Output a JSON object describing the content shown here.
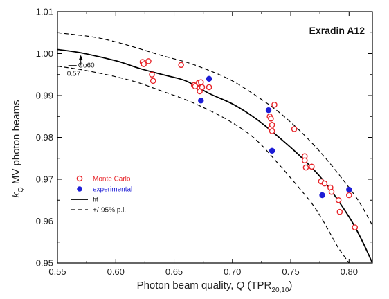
{
  "chart_data": {
    "type": "scatter",
    "title": "Exradin A12",
    "xlabel_pre": "Photon beam quality, ",
    "xlabel_q": "Q",
    "xlabel_mid": " (TPR",
    "xlabel_sub": "20,10",
    "xlabel_post": ")",
    "ylabel_k": "k",
    "ylabel_sub": "Q",
    "ylabel_rest": " MV photon beams",
    "xlim": [
      0.55,
      0.82
    ],
    "ylim": [
      0.95,
      1.01
    ],
    "x_ticks": [
      0.55,
      0.6,
      0.65,
      0.7,
      0.75,
      0.8
    ],
    "x_tick_labels": [
      "0.55",
      "0.60",
      "0.65",
      "0.70",
      "0.75",
      "0.80"
    ],
    "y_ticks": [
      0.95,
      0.96,
      0.97,
      0.98,
      0.99,
      1.0,
      1.01
    ],
    "y_tick_labels": [
      "0.95",
      "0.96",
      "0.97",
      "0.98",
      "0.99",
      "1.00",
      "1.01"
    ],
    "annotation": {
      "line1": "Co60",
      "line2": "0.57",
      "x": 0.57,
      "y": 1.0
    },
    "legend": {
      "placement": "lower-left",
      "entries": [
        {
          "label": "Monte Carlo",
          "kind": "open-circle",
          "color": "#e8262b"
        },
        {
          "label": "experimental",
          "kind": "filled-circle",
          "color": "#1d1dd6"
        },
        {
          "label": "fit",
          "kind": "solid-line",
          "color": "#000000"
        },
        {
          "label": "+/-95% p.l.",
          "kind": "dashed-line",
          "color": "#000000"
        }
      ]
    },
    "series": [
      {
        "name": "Monte Carlo",
        "color": "#e8262b",
        "marker": "open-circle",
        "points": [
          [
            0.623,
            0.998
          ],
          [
            0.624,
            0.9975
          ],
          [
            0.628,
            0.9982
          ],
          [
            0.631,
            0.995
          ],
          [
            0.632,
            0.9935
          ],
          [
            0.656,
            0.9973
          ],
          [
            0.667,
            0.9925
          ],
          [
            0.668,
            0.9922
          ],
          [
            0.671,
            0.993
          ],
          [
            0.672,
            0.9918
          ],
          [
            0.672,
            0.991
          ],
          [
            0.673,
            0.9932
          ],
          [
            0.674,
            0.992
          ],
          [
            0.68,
            0.992
          ],
          [
            0.732,
            0.985
          ],
          [
            0.733,
            0.9845
          ],
          [
            0.733,
            0.9822
          ],
          [
            0.734,
            0.9815
          ],
          [
            0.734,
            0.983
          ],
          [
            0.736,
            0.9878
          ],
          [
            0.753,
            0.982
          ],
          [
            0.762,
            0.9755
          ],
          [
            0.762,
            0.9745
          ],
          [
            0.763,
            0.9728
          ],
          [
            0.768,
            0.973
          ],
          [
            0.776,
            0.9695
          ],
          [
            0.779,
            0.969
          ],
          [
            0.784,
            0.968
          ],
          [
            0.785,
            0.967
          ],
          [
            0.791,
            0.965
          ],
          [
            0.792,
            0.9622
          ],
          [
            0.8,
            0.9662
          ],
          [
            0.805,
            0.9585
          ]
        ]
      },
      {
        "name": "experimental",
        "color": "#1d1dd6",
        "marker": "filled-circle",
        "points": [
          [
            0.673,
            0.9888
          ],
          [
            0.68,
            0.994
          ],
          [
            0.731,
            0.9865
          ],
          [
            0.734,
            0.9768
          ],
          [
            0.777,
            0.9662
          ],
          [
            0.8,
            0.9675
          ]
        ]
      },
      {
        "name": "fit",
        "color": "#000000",
        "line": "solid",
        "points": [
          [
            0.55,
            1.001
          ],
          [
            0.57,
            1.0002
          ],
          [
            0.6,
            0.9983
          ],
          [
            0.62,
            0.9965
          ],
          [
            0.64,
            0.995
          ],
          [
            0.66,
            0.9935
          ],
          [
            0.68,
            0.9905
          ],
          [
            0.7,
            0.988
          ],
          [
            0.72,
            0.9845
          ],
          [
            0.74,
            0.98
          ],
          [
            0.76,
            0.975
          ],
          [
            0.78,
            0.969
          ],
          [
            0.8,
            0.961
          ],
          [
            0.81,
            0.956
          ],
          [
            0.82,
            0.95
          ]
        ]
      },
      {
        "name": "+/-95% p.l.",
        "color": "#000000",
        "line": "dashed",
        "points": [
          [
            0.55,
            1.005
          ],
          [
            0.58,
            1.004
          ],
          [
            0.6,
            1.0028
          ],
          [
            0.62,
            1.0012
          ],
          [
            0.64,
            0.9995
          ],
          [
            0.66,
            0.998
          ],
          [
            0.68,
            0.996
          ],
          [
            0.7,
            0.9935
          ],
          [
            0.72,
            0.99
          ],
          [
            0.74,
            0.986
          ],
          [
            0.76,
            0.981
          ],
          [
            0.78,
            0.975
          ],
          [
            0.8,
            0.968
          ],
          [
            0.81,
            0.964
          ],
          [
            0.82,
            0.959
          ]
        ]
      },
      {
        "name": "+/-95% p.l.",
        "color": "#000000",
        "line": "dashed",
        "points": [
          [
            0.55,
            0.997
          ],
          [
            0.57,
            0.9962
          ],
          [
            0.6,
            0.9945
          ],
          [
            0.62,
            0.993
          ],
          [
            0.64,
            0.991
          ],
          [
            0.66,
            0.989
          ],
          [
            0.68,
            0.9865
          ],
          [
            0.7,
            0.9835
          ],
          [
            0.72,
            0.9795
          ],
          [
            0.74,
            0.9735
          ],
          [
            0.76,
            0.967
          ],
          [
            0.77,
            0.9635
          ],
          [
            0.78,
            0.959
          ],
          [
            0.79,
            0.954
          ],
          [
            0.8,
            0.95
          ]
        ]
      }
    ]
  }
}
